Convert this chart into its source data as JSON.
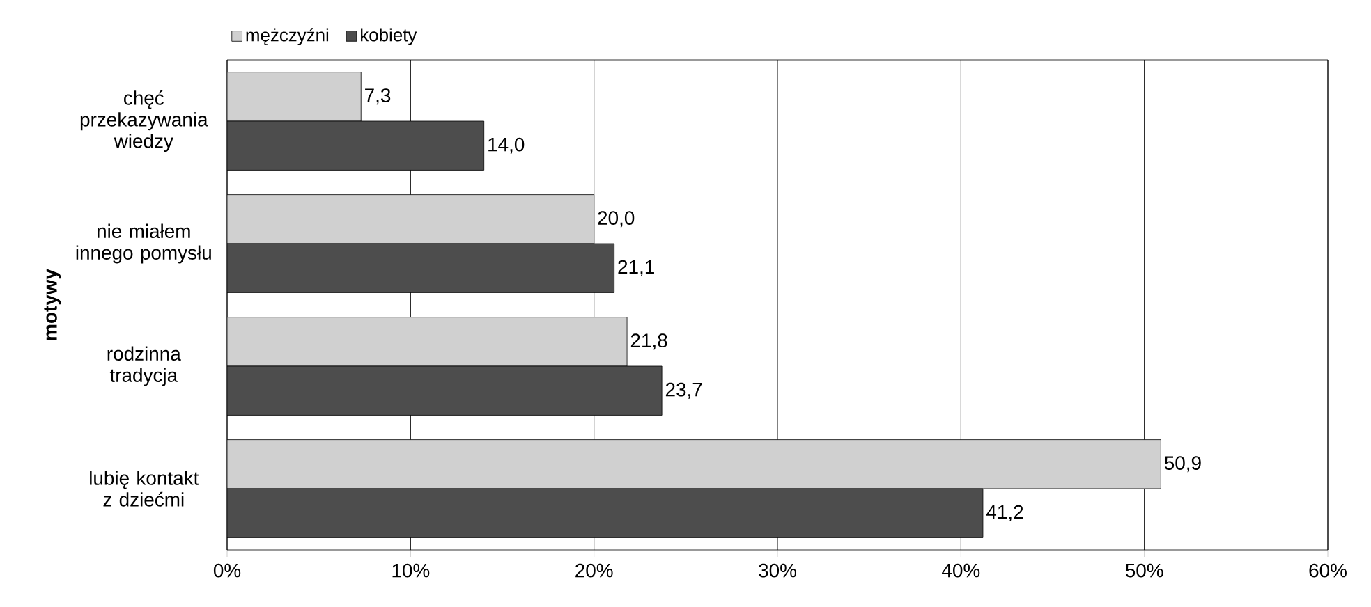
{
  "chart_data": {
    "type": "bar",
    "orientation": "horizontal",
    "ylabel": "motywy",
    "categories": [
      "chęć przekazywania wiedzy",
      "nie miałem innego pomysłu",
      "rodzinna tradycja",
      "lubię kontakt z dziećmi"
    ],
    "series": [
      {
        "name": "mężczyźni",
        "color": "#d0d0d0",
        "values": [
          7.3,
          20.0,
          21.8,
          50.9
        ],
        "value_labels": [
          "7,3",
          "20,0",
          "21,8",
          "50,9"
        ]
      },
      {
        "name": "kobiety",
        "color": "#4d4d4d",
        "values": [
          14.0,
          21.1,
          23.7,
          41.2
        ],
        "value_labels": [
          "14,0",
          "21,1",
          "23,7",
          "41,2"
        ]
      }
    ],
    "xlim": [
      0,
      60
    ],
    "xticks": [
      {
        "value": 0,
        "label": "0%"
      },
      {
        "value": 10,
        "label": "10%"
      },
      {
        "value": 20,
        "label": "20%"
      },
      {
        "value": 30,
        "label": "30%"
      },
      {
        "value": 40,
        "label": "40%"
      },
      {
        "value": 50,
        "label": "50%"
      },
      {
        "value": 60,
        "label": "60%"
      }
    ],
    "grid": "x",
    "legend": "top left"
  }
}
